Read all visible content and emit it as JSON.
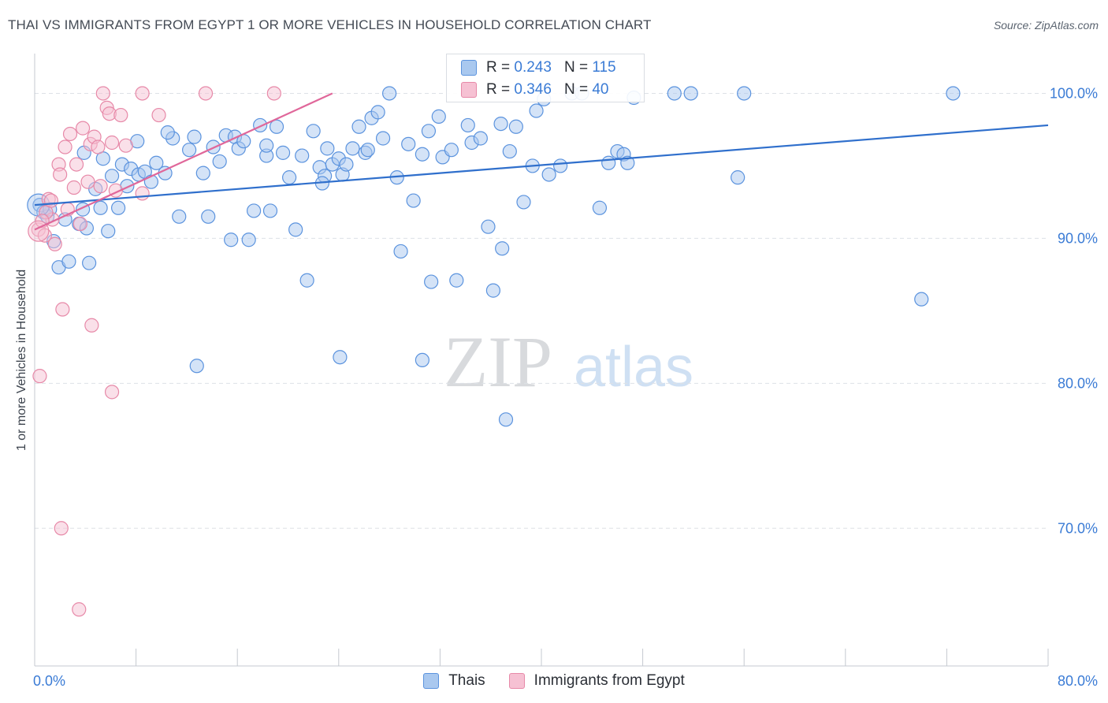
{
  "title": "THAI VS IMMIGRANTS FROM EGYPT 1 OR MORE VEHICLES IN HOUSEHOLD CORRELATION CHART",
  "source": "Source: ZipAtlas.com",
  "watermark": {
    "zip": "ZIP",
    "atlas": "atlas"
  },
  "colors": {
    "blue_fill": "#a9c8ef",
    "blue_stroke": "#5b93de",
    "blue_line": "#2f6fcc",
    "pink_fill": "#f6c1d3",
    "pink_stroke": "#e789a8",
    "pink_line": "#e0679a",
    "axis_text": "#3a7bd5",
    "grid": "#dde1e6"
  },
  "legend_top": {
    "rows": [
      {
        "r_label": "R =",
        "r_value": "0.243",
        "n_label": "N =",
        "n_value": "115"
      },
      {
        "r_label": "R =",
        "r_value": "0.346",
        "n_label": "N =",
        "n_value": "40"
      }
    ]
  },
  "legend_bottom": {
    "series": [
      "Thais",
      "Immigrants from Egypt"
    ]
  },
  "chart_data": {
    "type": "scatter",
    "xlabel": "",
    "ylabel": "1 or more Vehicles in Household",
    "xlim": [
      0,
      80
    ],
    "ylim": [
      60.5,
      102.2
    ],
    "x_tick_labels": [
      {
        "value": 0,
        "label": "0.0%"
      },
      {
        "value": 80,
        "label": "80.0%"
      }
    ],
    "y_tick_labels": [
      {
        "value": 100,
        "label": "100.0%"
      },
      {
        "value": 90,
        "label": "90.0%"
      },
      {
        "value": 80,
        "label": "80.0%"
      },
      {
        "value": 70,
        "label": "70.0%"
      }
    ],
    "series": [
      {
        "name": "Thais",
        "trend": {
          "x": [
            0,
            80
          ],
          "y": [
            92.3,
            97.8
          ]
        },
        "points": [
          [
            0.4,
            92.3
          ],
          [
            0.7,
            91.8
          ],
          [
            1.0,
            91.5
          ],
          [
            1.2,
            92.0
          ],
          [
            1.5,
            89.8
          ],
          [
            1.9,
            88.0
          ],
          [
            2.4,
            91.3
          ],
          [
            2.7,
            88.4
          ],
          [
            3.5,
            91.0
          ],
          [
            3.8,
            92.0
          ],
          [
            4.1,
            90.7
          ],
          [
            4.3,
            88.3
          ],
          [
            4.8,
            93.4
          ],
          [
            5.2,
            92.1
          ],
          [
            5.4,
            95.5
          ],
          [
            5.8,
            90.5
          ],
          [
            6.1,
            94.3
          ],
          [
            6.6,
            92.1
          ],
          [
            6.9,
            95.1
          ],
          [
            7.3,
            93.6
          ],
          [
            7.6,
            94.8
          ],
          [
            8.2,
            94.4
          ],
          [
            8.7,
            94.6
          ],
          [
            9.2,
            93.9
          ],
          [
            9.6,
            95.2
          ],
          [
            10.3,
            94.5
          ],
          [
            10.9,
            96.9
          ],
          [
            11.4,
            91.5
          ],
          [
            12.2,
            96.1
          ],
          [
            12.6,
            97.0
          ],
          [
            13.3,
            94.5
          ],
          [
            13.7,
            91.5
          ],
          [
            14.1,
            96.3
          ],
          [
            14.6,
            95.3
          ],
          [
            15.1,
            97.1
          ],
          [
            15.5,
            89.9
          ],
          [
            15.8,
            97.0
          ],
          [
            16.1,
            96.2
          ],
          [
            16.5,
            96.7
          ],
          [
            16.9,
            89.9
          ],
          [
            17.3,
            91.9
          ],
          [
            17.8,
            97.8
          ],
          [
            18.3,
            95.7
          ],
          [
            18.6,
            91.9
          ],
          [
            19.1,
            97.7
          ],
          [
            19.6,
            95.9
          ],
          [
            20.1,
            94.2
          ],
          [
            20.6,
            90.6
          ],
          [
            21.1,
            95.7
          ],
          [
            21.5,
            87.1
          ],
          [
            22.0,
            97.4
          ],
          [
            22.5,
            94.9
          ],
          [
            22.9,
            94.3
          ],
          [
            23.1,
            96.2
          ],
          [
            23.5,
            95.1
          ],
          [
            24.0,
            95.5
          ],
          [
            24.3,
            94.4
          ],
          [
            24.6,
            95.1
          ],
          [
            25.1,
            96.2
          ],
          [
            25.6,
            97.7
          ],
          [
            26.1,
            95.9
          ],
          [
            26.6,
            98.3
          ],
          [
            27.1,
            98.7
          ],
          [
            27.5,
            96.9
          ],
          [
            28.0,
            100.0
          ],
          [
            28.6,
            94.2
          ],
          [
            28.9,
            89.1
          ],
          [
            29.5,
            96.5
          ],
          [
            29.9,
            92.6
          ],
          [
            30.6,
            95.8
          ],
          [
            31.1,
            97.4
          ],
          [
            31.3,
            87.0
          ],
          [
            31.9,
            98.4
          ],
          [
            32.2,
            95.6
          ],
          [
            32.9,
            96.1
          ],
          [
            33.3,
            87.1
          ],
          [
            34.5,
            96.6
          ],
          [
            35.2,
            96.9
          ],
          [
            35.8,
            90.8
          ],
          [
            36.2,
            86.4
          ],
          [
            36.9,
            89.3
          ],
          [
            37.5,
            96.0
          ],
          [
            38.6,
            92.5
          ],
          [
            39.3,
            95.0
          ],
          [
            39.6,
            98.8
          ],
          [
            40.6,
            94.4
          ],
          [
            41.5,
            95.0
          ],
          [
            42.4,
            100.0
          ],
          [
            43.2,
            100.0
          ],
          [
            44.6,
            92.1
          ],
          [
            45.3,
            95.2
          ],
          [
            46.0,
            96.0
          ],
          [
            46.5,
            95.8
          ],
          [
            46.8,
            95.2
          ],
          [
            47.3,
            99.7
          ],
          [
            50.5,
            100.0
          ],
          [
            51.8,
            100.0
          ],
          [
            55.5,
            94.2
          ],
          [
            56.0,
            100.0
          ],
          [
            70.0,
            85.8
          ],
          [
            72.5,
            100.0
          ],
          [
            12.8,
            81.2
          ],
          [
            24.1,
            81.8
          ],
          [
            30.6,
            81.6
          ],
          [
            37.2,
            77.5
          ],
          [
            34.2,
            97.8
          ],
          [
            36.8,
            97.9
          ],
          [
            38.0,
            97.7
          ],
          [
            8.1,
            96.7
          ],
          [
            10.5,
            97.3
          ],
          [
            18.3,
            96.4
          ],
          [
            40.2,
            99.6
          ],
          [
            26.3,
            96.1
          ],
          [
            22.7,
            93.8
          ],
          [
            3.9,
            95.9
          ]
        ]
      },
      {
        "name": "Immigrants from Egypt",
        "trend": {
          "x": [
            0,
            23.5
          ],
          "y": [
            90.6,
            100.0
          ]
        },
        "points": [
          [
            0.3,
            90.6
          ],
          [
            0.4,
            80.5
          ],
          [
            0.8,
            90.2
          ],
          [
            1.1,
            92.7
          ],
          [
            1.4,
            91.3
          ],
          [
            1.6,
            89.6
          ],
          [
            1.9,
            95.1
          ],
          [
            2.0,
            94.4
          ],
          [
            2.4,
            96.3
          ],
          [
            2.6,
            92.0
          ],
          [
            2.8,
            97.2
          ],
          [
            3.1,
            93.5
          ],
          [
            3.3,
            95.1
          ],
          [
            3.6,
            91.0
          ],
          [
            3.8,
            97.6
          ],
          [
            4.2,
            93.9
          ],
          [
            4.4,
            96.5
          ],
          [
            4.7,
            97.0
          ],
          [
            5.0,
            96.3
          ],
          [
            5.2,
            93.6
          ],
          [
            5.4,
            100.0
          ],
          [
            5.7,
            99.0
          ],
          [
            5.9,
            98.6
          ],
          [
            6.1,
            96.6
          ],
          [
            6.4,
            93.3
          ],
          [
            6.8,
            98.5
          ],
          [
            7.2,
            96.4
          ],
          [
            8.5,
            93.1
          ],
          [
            9.8,
            98.5
          ],
          [
            13.5,
            100.0
          ],
          [
            18.9,
            100.0
          ],
          [
            8.5,
            100.0
          ],
          [
            2.2,
            85.1
          ],
          [
            4.5,
            84.0
          ],
          [
            6.1,
            79.4
          ],
          [
            2.1,
            70.0
          ],
          [
            3.5,
            64.4
          ],
          [
            0.9,
            91.8
          ],
          [
            1.3,
            92.6
          ],
          [
            0.6,
            91.2
          ]
        ]
      }
    ]
  }
}
